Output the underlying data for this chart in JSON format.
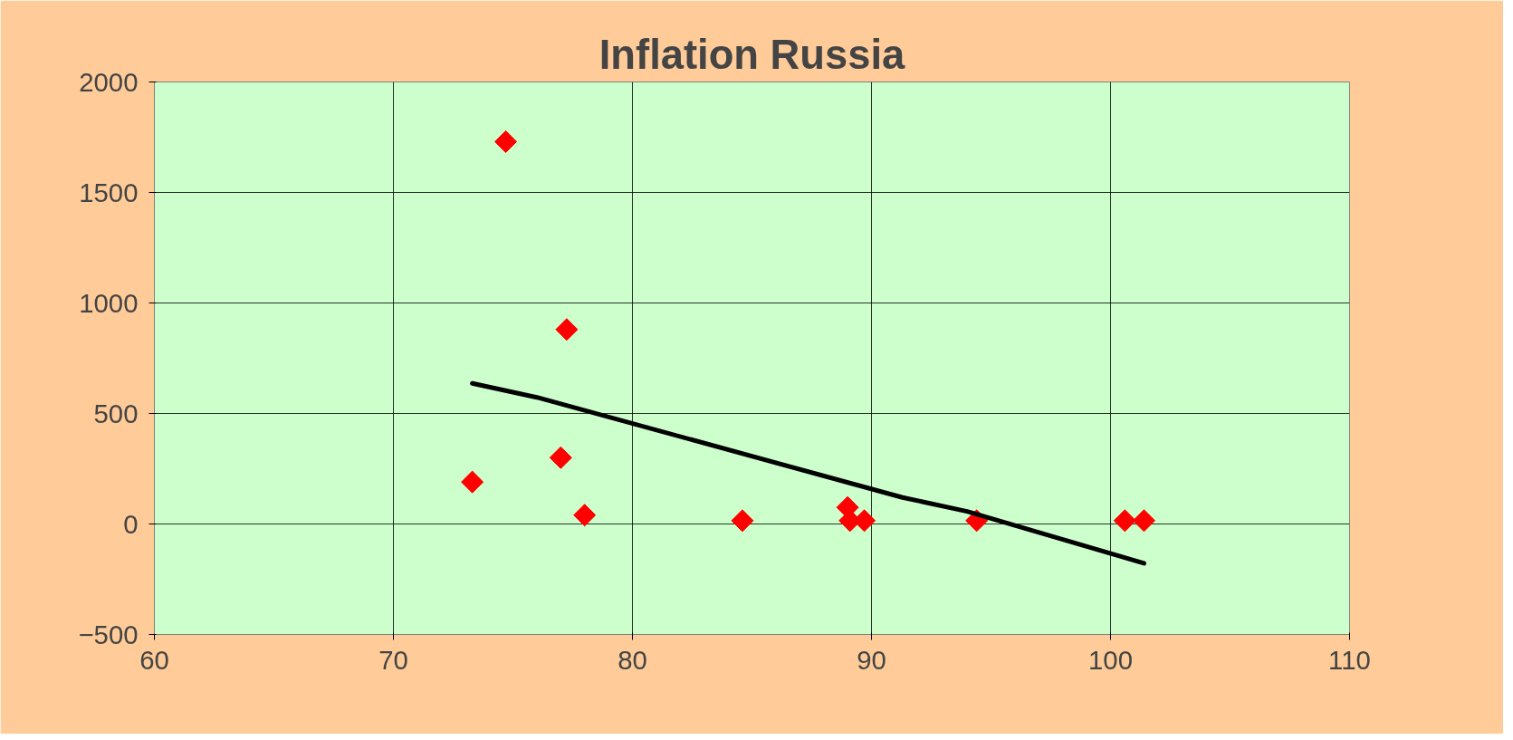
{
  "chart_data": {
    "type": "scatter",
    "title": "Inflation Russia",
    "xlim": [
      60,
      110
    ],
    "xticks": [
      60,
      70,
      80,
      90,
      100,
      110
    ],
    "ylim": [
      -500,
      2000
    ],
    "yticks": [
      -500,
      0,
      500,
      1000,
      1500,
      2000
    ],
    "grid": true,
    "series": [
      {
        "marker": "diamond",
        "color": "#ff0000",
        "x": [
          73.3,
          74.7,
          77.25,
          77.0,
          78.0,
          84.6,
          89.0,
          89.1,
          89.7,
          94.4,
          100.6,
          101.4
        ],
        "values": [
          190,
          1730,
          880,
          300,
          40,
          15,
          75,
          15,
          15,
          15,
          15,
          15
        ]
      },
      {
        "type": "line",
        "color": "#000000",
        "line_style": "solid",
        "x": [
          73.3,
          76.0,
          91.3,
          94.0,
          101.4
        ],
        "values": [
          636,
          573,
          120,
          57,
          -178
        ]
      }
    ]
  }
}
